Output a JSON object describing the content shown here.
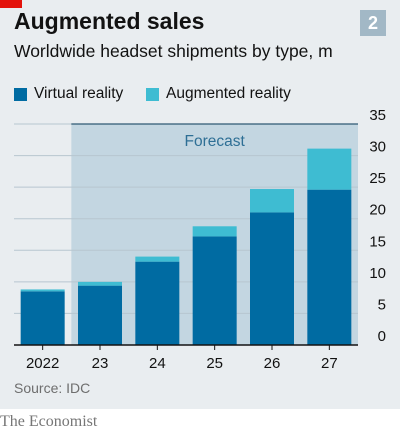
{
  "header": {
    "title": "Augmented sales",
    "subtitle": "Worldwide headset shipments by type, m",
    "chart_number": "2",
    "accent_color": "#e3120b"
  },
  "legend": {
    "items": [
      {
        "label": "Virtual reality",
        "color": "#006ba2"
      },
      {
        "label": "Augmented reality",
        "color": "#3ebcd2"
      }
    ]
  },
  "footer": {
    "source": "Source: IDC",
    "publisher": "The Economist"
  },
  "chart_data": {
    "type": "bar",
    "stacked": true,
    "categories": [
      "2022",
      "23",
      "24",
      "25",
      "26",
      "27"
    ],
    "series": [
      {
        "name": "Virtual reality",
        "color": "#006ba2",
        "values": [
          8.5,
          9.4,
          13.2,
          17.2,
          21.0,
          24.6
        ]
      },
      {
        "name": "Augmented reality",
        "color": "#3ebcd2",
        "values": [
          0.3,
          0.6,
          0.8,
          1.6,
          3.7,
          6.5
        ]
      }
    ],
    "ylim": [
      0,
      35
    ],
    "yticks": [
      0,
      5,
      10,
      15,
      20,
      25,
      30,
      35
    ],
    "y_axis_side": "right",
    "grid": true,
    "annotation": {
      "label": "Forecast",
      "from_category": "23",
      "to_category": "27"
    },
    "colors": {
      "grid": "#b7c6cf",
      "axis": "#121212",
      "forecast_shade": "#c3d6e1"
    }
  }
}
